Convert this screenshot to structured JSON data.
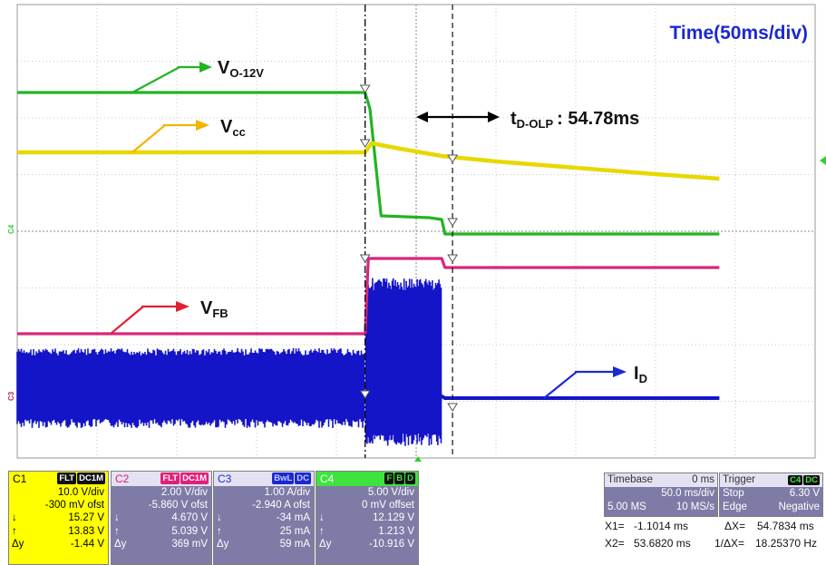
{
  "chart_data": {
    "type": "line",
    "title": "Time(50ms/div)",
    "timebase_ms_per_div": 50,
    "divisions_x": 10,
    "divisions_y": 8,
    "grid": true,
    "event_time_ms": 218,
    "series": [
      {
        "name": "V_O-12V",
        "color": "#22b422",
        "x": [
          0,
          218,
          221,
          228,
          258,
          266,
          268,
          272,
          310,
          380,
          440
        ],
        "y": [
          102,
          102,
          120,
          238,
          240,
          242,
          258,
          258,
          258,
          258,
          258
        ]
      },
      {
        "name": "V_cc",
        "color": "#e6d800",
        "x": [
          0,
          218,
          222,
          240,
          266,
          300,
          350,
          400,
          440
        ],
        "y": [
          168,
          168,
          158,
          164,
          172,
          178,
          185,
          192,
          197
        ]
      },
      {
        "name": "V_FB",
        "color": "#d6287a",
        "x": [
          0,
          218,
          220,
          266,
          268,
          440
        ],
        "y": [
          368,
          368,
          285,
          285,
          295,
          295
        ]
      },
      {
        "name": "I_D",
        "color": "#1414c8",
        "x": [
          0,
          218,
          220,
          266,
          268,
          440
        ],
        "y": [
          437,
          437,
          437,
          437,
          439,
          439
        ]
      }
    ],
    "annotations": {
      "vo": {
        "main": "V",
        "sub": "O-12V"
      },
      "vcc": {
        "main": "V",
        "sub": "cc"
      },
      "vfb": {
        "main": "V",
        "sub": "FB"
      },
      "id": {
        "main": "I",
        "sub": "D"
      },
      "tdolp": {
        "main": "t",
        "sub": "D-OLP",
        "value": ": 54.78ms"
      }
    }
  },
  "channels": {
    "c1": {
      "name": "C1",
      "tags": [
        "FLT",
        "DC1M"
      ],
      "vdiv": "10.0 V/div",
      "ofst": "-300 mV ofst",
      "down": "15.27 V",
      "up": "13.83 V",
      "dy": "-1.44 V"
    },
    "c2": {
      "name": "C2",
      "tags": [
        "FLT",
        "DC1M"
      ],
      "vdiv": "2.00 V/div",
      "ofst": "-5.860 V ofst",
      "down": "4.670 V",
      "up": "5.039 V",
      "dy": "369 mV"
    },
    "c3": {
      "name": "C3",
      "tags": [
        "BwL",
        "DC"
      ],
      "vdiv": "1.00 A/div",
      "ofst": "-2.940 A ofst",
      "down": "-34 mA",
      "up": "25 mA",
      "dy": "59 mA"
    },
    "c4": {
      "name": "C4",
      "tags": [
        "F",
        "B",
        "D"
      ],
      "vdiv": "5.00 V/div",
      "ofst": "0 mV offset",
      "down": "12.129 V",
      "up": "1.213 V",
      "dy": "-10.916 V"
    }
  },
  "timebase": {
    "label": "Timebase",
    "delay": "0 ms",
    "div": "50.0 ms/div",
    "samples": "5.00 MS",
    "rate": "10 MS/s"
  },
  "trigger": {
    "label": "Trigger",
    "src": [
      "C4",
      "DC"
    ],
    "mode": "Stop",
    "level": "6.30 V",
    "type": "Edge",
    "slope": "Negative"
  },
  "cursors": {
    "x1_label": "X1=",
    "x1": "-1.1014 ms",
    "dx_label": "ΔX=",
    "dx": "54.7834 ms",
    "x2_label": "X2=",
    "x2": "53.6820 ms",
    "inv_label": "1/ΔX=",
    "inv": "18.25370 Hz"
  },
  "labels": {
    "down": "↓",
    "up": "↑",
    "dy": "Δy"
  },
  "channel_markers": {
    "c4": "C4",
    "c3": "C3"
  }
}
